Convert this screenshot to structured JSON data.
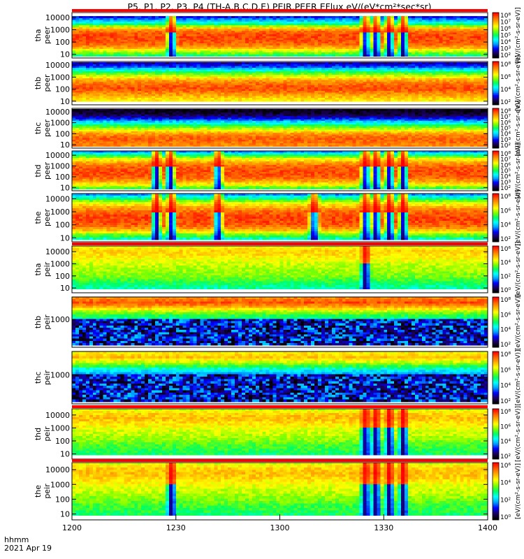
{
  "title": "P5, P1, P2, P3, P4 (TH-A,B,C,D,E) PEIR,PEER EFlux eV/(eV*cm²*sec*sr)",
  "footer": {
    "time_label": "hhmm",
    "date_label": "2021 Apr 19"
  },
  "colors": {
    "palette": [
      "#000000",
      "#1a0060",
      "#0000ff",
      "#00a0ff",
      "#00ffff",
      "#00ff60",
      "#80ff00",
      "#ffff00",
      "#ffb000",
      "#ff6000",
      "#ff0000"
    ],
    "gap_stripe": "#ff0000"
  },
  "chart_data": {
    "type": "heatmap",
    "x_axis": {
      "ticks": [
        "1200",
        "1230",
        "1300",
        "1330",
        "1400"
      ],
      "range": [
        "12:00",
        "14:00"
      ]
    },
    "colorbar_label": "[eV/(cm²-s-sr-eV)]",
    "panels": [
      {
        "line1": "tha",
        "line2": "peer",
        "yticks": [
          "10000",
          "1000",
          "100",
          "10"
        ],
        "ymin": 5,
        "ymax": 25000,
        "cb_ticks": [
          "10⁸",
          "10⁷",
          "10⁶",
          "10⁵",
          "10⁴",
          "10³",
          "10²"
        ],
        "cb_exp": [
          8,
          2
        ],
        "band": [
          0.08,
          0.96
        ],
        "profile": [
          0.5,
          0.65,
          0.8,
          0.9,
          0.92,
          0.93,
          0.9,
          0.8,
          0.5,
          0.35,
          0.2
        ],
        "events": [
          28.5,
          85,
          88,
          92,
          96
        ],
        "floor": 0.35
      },
      {
        "line1": "thb",
        "line2": "peer",
        "yticks": [
          "10000",
          "1000",
          "100",
          "10"
        ],
        "ymin": 5,
        "ymax": 20000,
        "cb_ticks": [
          "10⁸",
          "10⁶",
          "10⁴",
          "10²"
        ],
        "cb_exp": [
          8,
          2
        ],
        "band": [
          0.02,
          0.92
        ],
        "profile": [
          0.72,
          0.78,
          0.85,
          0.92,
          0.9,
          0.85,
          0.75,
          0.6,
          0.45,
          0.25,
          0.15
        ],
        "events": [],
        "floor": 0.5
      },
      {
        "line1": "thc",
        "line2": "peer",
        "yticks": [
          "10000",
          "1000",
          "100",
          "10"
        ],
        "ymin": 5,
        "ymax": 20000,
        "cb_ticks": [
          "10⁸",
          "10⁷",
          "10⁶",
          "10⁵",
          "10⁴",
          "10³",
          "10²"
        ],
        "cb_exp": [
          8,
          2
        ],
        "band": [
          0.02,
          0.96
        ],
        "profile": [
          0.85,
          0.88,
          0.9,
          0.85,
          0.75,
          0.6,
          0.45,
          0.3,
          0.15,
          0.05,
          0.02
        ],
        "events": [],
        "floor": 0.3
      },
      {
        "line1": "thd",
        "line2": "peer",
        "yticks": [
          "10000",
          "1000",
          "100",
          "10"
        ],
        "ymin": 5,
        "ymax": 25000,
        "cb_ticks": [
          "10⁸",
          "10⁷",
          "10⁶",
          "10⁵",
          "10⁴",
          "10³",
          "10²"
        ],
        "cb_exp": [
          8,
          2
        ],
        "band": [
          0.0,
          0.96
        ],
        "profile": [
          0.55,
          0.7,
          0.82,
          0.9,
          0.92,
          0.92,
          0.9,
          0.82,
          0.7,
          0.5,
          0.3
        ],
        "events": [
          24,
          28,
          42,
          85,
          88,
          92,
          96
        ],
        "floor": 0.4
      },
      {
        "line1": "the",
        "line2": "peer",
        "yticks": [
          "10000",
          "1000",
          "100",
          "10"
        ],
        "ymin": 5,
        "ymax": 25000,
        "cb_ticks": [
          "10⁸",
          "10⁶",
          "10⁴",
          "10²"
        ],
        "cb_exp": [
          8,
          2
        ],
        "band": [
          0.0,
          0.96
        ],
        "profile": [
          0.45,
          0.6,
          0.8,
          0.9,
          0.93,
          0.93,
          0.9,
          0.82,
          0.7,
          0.5,
          0.3
        ],
        "events": [
          24,
          28.5,
          42,
          70,
          85,
          88,
          92,
          96
        ],
        "floor": 0.4
      },
      {
        "line1": "tha",
        "line2": "peir",
        "yticks": [
          "10000",
          "1000",
          "100",
          "10"
        ],
        "ymin": 4,
        "ymax": 30000,
        "cb_ticks": [
          "10⁶",
          "10⁴",
          "10²",
          "10⁰"
        ],
        "cb_exp": [
          6,
          0
        ],
        "band": [
          0.0,
          0.92
        ],
        "profile": [
          0.45,
          0.5,
          0.55,
          0.6,
          0.62,
          0.64,
          0.66,
          0.7,
          0.74,
          0.76,
          0.7
        ],
        "events": [
          85
        ],
        "floor": 0.4
      },
      {
        "line1": "thb",
        "line2": "peir",
        "yticks": [
          "1000"
        ],
        "ymin": 15,
        "ymax": 30000,
        "cb_ticks": [
          "10⁸",
          "10⁶",
          "10⁴",
          "10²"
        ],
        "cb_exp": [
          8,
          2
        ],
        "band": [
          0.0,
          0.96
        ],
        "profile": [
          0.05,
          0.1,
          0.18,
          0.25,
          0.3,
          0.4,
          0.5,
          0.62,
          0.8,
          0.92,
          0.85
        ],
        "events": [],
        "floor": 0.2
      },
      {
        "line1": "thc",
        "line2": "peir",
        "yticks": [
          "1000"
        ],
        "ymin": 15,
        "ymax": 30000,
        "cb_ticks": [
          "10⁸",
          "10⁶",
          "10⁴",
          "10²"
        ],
        "cb_exp": [
          8,
          2
        ],
        "band": [
          0.0,
          0.96
        ],
        "profile": [
          0.05,
          0.12,
          0.2,
          0.25,
          0.28,
          0.3,
          0.35,
          0.5,
          0.65,
          0.78,
          0.72
        ],
        "events": [],
        "floor": 0.2
      },
      {
        "line1": "thd",
        "line2": "peir",
        "yticks": [
          "10000",
          "1000",
          "100",
          "10"
        ],
        "ymin": 4,
        "ymax": 30000,
        "cb_ticks": [
          "10⁸",
          "10⁶",
          "10⁴",
          "10²"
        ],
        "cb_exp": [
          8,
          2
        ],
        "band": [
          0.0,
          0.92
        ],
        "profile": [
          0.5,
          0.53,
          0.56,
          0.6,
          0.64,
          0.66,
          0.7,
          0.74,
          0.78,
          0.76,
          0.68
        ],
        "events": [
          85,
          88,
          92,
          96
        ],
        "floor": 0.45
      },
      {
        "line1": "the",
        "line2": "peir",
        "yticks": [
          "10000",
          "1000",
          "100",
          "10"
        ],
        "ymin": 4,
        "ymax": 30000,
        "cb_ticks": [
          "10⁶",
          "10⁴",
          "10²",
          "10⁰"
        ],
        "cb_exp": [
          6,
          0
        ],
        "band": [
          0.0,
          0.92
        ],
        "profile": [
          0.5,
          0.53,
          0.56,
          0.6,
          0.64,
          0.66,
          0.7,
          0.75,
          0.78,
          0.76,
          0.68
        ],
        "events": [
          28.5,
          85,
          88,
          92,
          96
        ],
        "floor": 0.45
      }
    ]
  }
}
